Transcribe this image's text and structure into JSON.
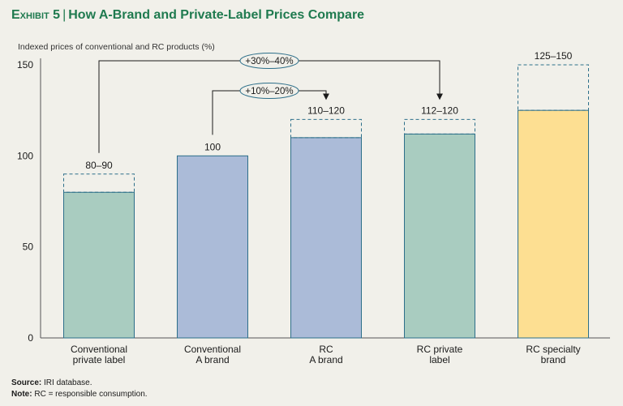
{
  "title": {
    "exhibit": "Exhibit 5",
    "text": "How A-Brand and Private-Label Prices Compare"
  },
  "chart_data": {
    "type": "bar",
    "ylabel": "Indexed prices of conventional and RC products (%)",
    "ylim": [
      0,
      150
    ],
    "yticks": [
      0,
      50,
      100,
      150
    ],
    "grid": false,
    "categories": [
      [
        "Conventional",
        "private label"
      ],
      [
        "Conventional",
        "A brand"
      ],
      [
        "RC",
        "A brand"
      ],
      [
        "RC private",
        "label"
      ],
      [
        "RC specialty",
        "brand"
      ]
    ],
    "values": [
      80,
      100,
      110,
      112,
      125
    ],
    "ranges": [
      [
        80,
        90
      ],
      [
        100,
        100
      ],
      [
        110,
        120
      ],
      [
        112,
        120
      ],
      [
        125,
        150
      ]
    ],
    "value_labels": [
      "80–90",
      "100",
      "110–120",
      "112–120",
      "125–150"
    ],
    "colors": [
      "#a9ccc0",
      "#abbbd8",
      "#abbbd8",
      "#a9ccc0",
      "#fddf92"
    ],
    "annotations": [
      {
        "label": "+10%–20%",
        "from": 1,
        "to": 2
      },
      {
        "label": "+30%–40%",
        "from": 0,
        "to": 3
      }
    ]
  },
  "footer": {
    "source_label": "Source:",
    "source_text": " IRI database.",
    "note_label": "Note:",
    "note_text": " RC = responsible consumption."
  }
}
